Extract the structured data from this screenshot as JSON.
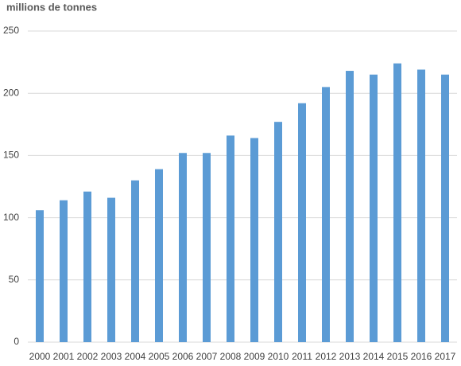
{
  "chart_data": {
    "type": "bar",
    "title": "millions de tonnes",
    "categories": [
      "2000",
      "2001",
      "2002",
      "2003",
      "2004",
      "2005",
      "2006",
      "2007",
      "2008",
      "2009",
      "2010",
      "2011",
      "2012",
      "2013",
      "2014",
      "2015",
      "2016",
      "2017"
    ],
    "values": [
      106,
      114,
      121,
      116,
      130,
      139,
      152,
      152,
      166,
      164,
      177,
      192,
      205,
      218,
      215,
      224,
      219,
      215
    ],
    "color": "#5b9bd5",
    "ylim": [
      0,
      250
    ],
    "yticks": [
      0,
      50,
      100,
      150,
      200,
      250
    ],
    "grid": true
  }
}
